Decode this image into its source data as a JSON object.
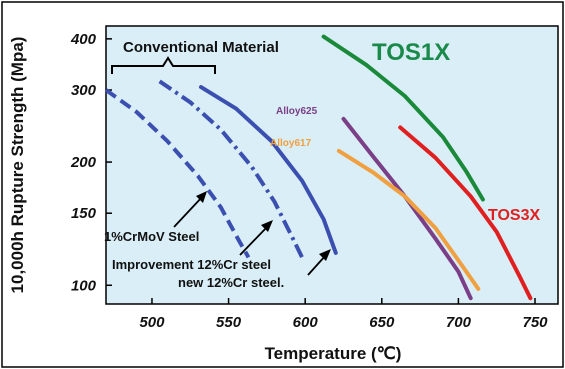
{
  "chart_data": {
    "type": "line",
    "title": "",
    "xlabel": "Temperature (℃)",
    "ylabel": "10,000h Rupture Strength (Mpa)",
    "xlim": [
      470,
      765
    ],
    "ylim": [
      90,
      430
    ],
    "y_scale": "log",
    "x_ticks": [
      "500",
      "550",
      "600",
      "650",
      "700",
      "750"
    ],
    "x_tick_values": [
      500,
      550,
      600,
      650,
      700,
      750
    ],
    "y_ticks": [
      "400",
      "300",
      "200",
      "150",
      "100"
    ],
    "y_tick_values": [
      400,
      300,
      200,
      150,
      100
    ],
    "grid": false,
    "colors": {
      "background": "#d9eef6",
      "blue": "#3b4fb0",
      "green": "#1a8a3a",
      "red": "#e02020",
      "purple": "#7a3f86",
      "orange": "#f0a040",
      "tos1x_label": "#1a8a4a"
    },
    "series": [
      {
        "name": "1%CrMoV Steel",
        "color": "#3b4fb0",
        "style": "dashed",
        "points": [
          [
            470,
            300
          ],
          [
            490,
            265
          ],
          [
            510,
            225
          ],
          [
            530,
            185
          ],
          [
            545,
            155
          ],
          [
            556,
            130
          ],
          [
            563,
            117
          ]
        ]
      },
      {
        "name": "Improvement 12%Cr steel",
        "color": "#3b4fb0",
        "style": "dashdot",
        "points": [
          [
            505,
            315
          ],
          [
            525,
            280
          ],
          [
            545,
            240
          ],
          [
            565,
            195
          ],
          [
            580,
            160
          ],
          [
            592,
            130
          ],
          [
            598,
            117
          ]
        ]
      },
      {
        "name": "new 12%Cr steel.",
        "color": "#3b4fb0",
        "style": "solid",
        "points": [
          [
            532,
            305
          ],
          [
            555,
            270
          ],
          [
            578,
            225
          ],
          [
            598,
            180
          ],
          [
            612,
            145
          ],
          [
            620,
            120
          ]
        ]
      },
      {
        "name": "TOS1X",
        "color": "#1a8a3a",
        "style": "solid",
        "points": [
          [
            612,
            405
          ],
          [
            640,
            345
          ],
          [
            665,
            290
          ],
          [
            690,
            230
          ],
          [
            705,
            190
          ],
          [
            716,
            162
          ]
        ]
      },
      {
        "name": "TOS3X",
        "color": "#e02020",
        "style": "solid",
        "points": [
          [
            662,
            243
          ],
          [
            685,
            205
          ],
          [
            708,
            165
          ],
          [
            725,
            135
          ],
          [
            740,
            105
          ],
          [
            747,
            93
          ]
        ]
      },
      {
        "name": "Alloy625",
        "color": "#7a3f86",
        "style": "solid",
        "points": [
          [
            625,
            255
          ],
          [
            645,
            205
          ],
          [
            665,
            165
          ],
          [
            685,
            130
          ],
          [
            700,
            108
          ],
          [
            708,
            93
          ]
        ]
      },
      {
        "name": "Alloy617",
        "color": "#f0a040",
        "style": "solid",
        "points": [
          [
            622,
            213
          ],
          [
            645,
            188
          ],
          [
            665,
            165
          ],
          [
            685,
            138
          ],
          [
            700,
            115
          ],
          [
            713,
            98
          ]
        ]
      }
    ],
    "annotations": {
      "conventional_material": "Conventional Material",
      "tos1x": "TOS1X",
      "tos3x": "TOS3X",
      "alloy625": "Alloy625",
      "alloy617": "Alloy617",
      "crmov": "1%CrMoV Steel",
      "improvement": "Improvement 12%Cr steel",
      "new12cr": "new 12%Cr steel."
    }
  }
}
